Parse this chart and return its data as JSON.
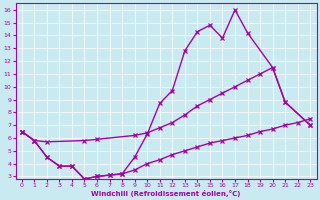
{
  "xlabel": "Windchill (Refroidissement éolien,°C)",
  "bg_color": "#c8eaf0",
  "line_color": "#aa00aa",
  "xlim": [
    -0.5,
    23.5
  ],
  "ylim": [
    2.8,
    16.5
  ],
  "xticks": [
    0,
    1,
    2,
    3,
    4,
    5,
    6,
    7,
    8,
    9,
    10,
    11,
    12,
    13,
    14,
    15,
    16,
    17,
    18,
    19,
    20,
    21,
    22,
    23
  ],
  "yticks": [
    3,
    4,
    5,
    6,
    7,
    8,
    9,
    10,
    11,
    12,
    13,
    14,
    15,
    16
  ],
  "line1_x": [
    0,
    1,
    2,
    3,
    4,
    5,
    6,
    7,
    8,
    9,
    10,
    11,
    12,
    13,
    14,
    15,
    16,
    17,
    18,
    20,
    21,
    23
  ],
  "line1_y": [
    6.5,
    5.8,
    4.5,
    3.8,
    3.8,
    2.8,
    3.0,
    3.1,
    3.2,
    4.5,
    6.3,
    8.7,
    9.7,
    12.8,
    14.3,
    14.8,
    13.8,
    16.0,
    14.2,
    11.5,
    8.8,
    7.0
  ],
  "line2_x": [
    0,
    1,
    2,
    5,
    6,
    9,
    10,
    11,
    12,
    13,
    14,
    15,
    16,
    17,
    18,
    19,
    20,
    21,
    23
  ],
  "line2_y": [
    6.5,
    5.8,
    5.7,
    5.8,
    5.9,
    6.2,
    6.4,
    6.8,
    7.2,
    7.8,
    8.5,
    9.0,
    9.5,
    10.0,
    10.5,
    11.0,
    11.5,
    8.8,
    7.0
  ],
  "line3_x": [
    0,
    1,
    2,
    3,
    4,
    5,
    6,
    7,
    8,
    9,
    10,
    11,
    12,
    13,
    14,
    15,
    16,
    17,
    18,
    19,
    20,
    21,
    22,
    23
  ],
  "line3_y": [
    6.5,
    5.8,
    4.5,
    3.8,
    3.8,
    2.8,
    3.0,
    3.1,
    3.2,
    3.5,
    4.0,
    4.3,
    4.7,
    5.0,
    5.3,
    5.6,
    5.8,
    6.0,
    6.2,
    6.5,
    6.7,
    7.0,
    7.2,
    7.5
  ]
}
